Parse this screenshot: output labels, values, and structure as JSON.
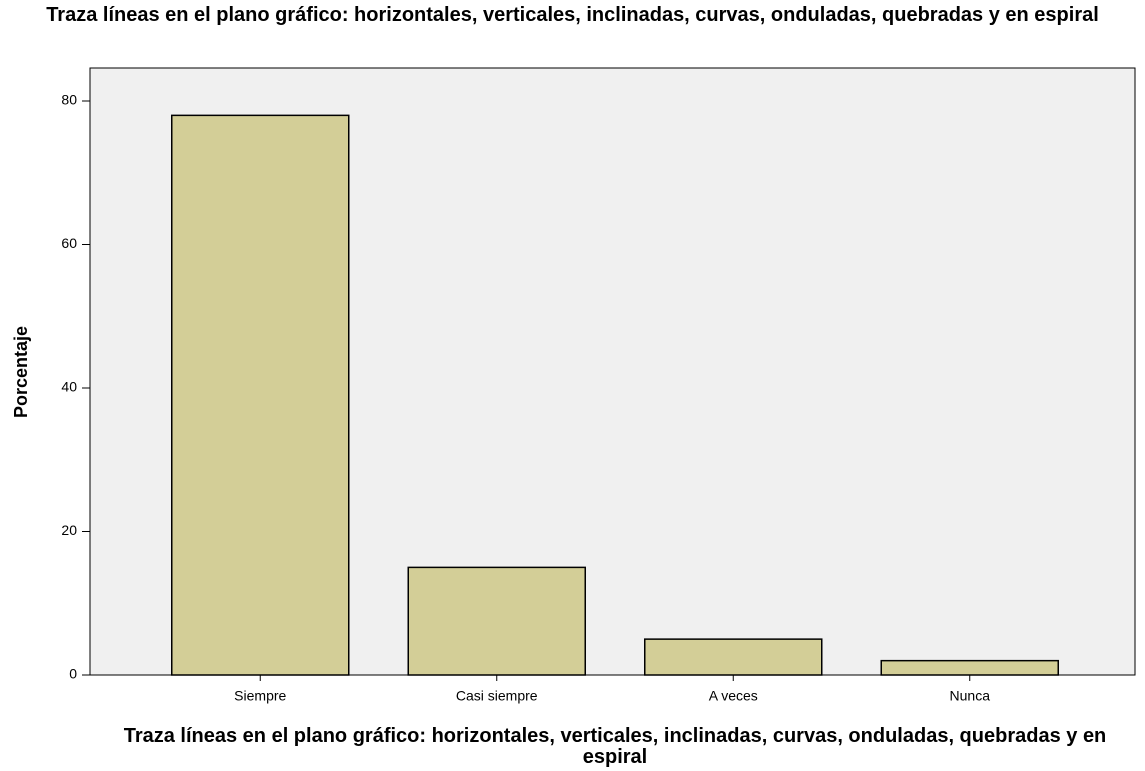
{
  "chart_data": {
    "type": "bar",
    "title": "Traza líneas en el plano gráfico: horizontales, verticales, inclinadas, curvas, onduladas, quebradas y en espiral",
    "x_label": "Traza líneas en el plano gráfico: horizontales, verticales, inclinadas, curvas, onduladas, quebradas y en espiral",
    "y_label": "Porcentaje",
    "categories": [
      "Siempre",
      "Casi siempre",
      "A veces",
      "Nunca"
    ],
    "values": [
      78,
      15,
      5,
      2
    ],
    "color": "#d3ce97",
    "ylim": [
      0,
      84.6
    ],
    "yticks": [
      0,
      20,
      40,
      60,
      80
    ],
    "grid": false
  }
}
